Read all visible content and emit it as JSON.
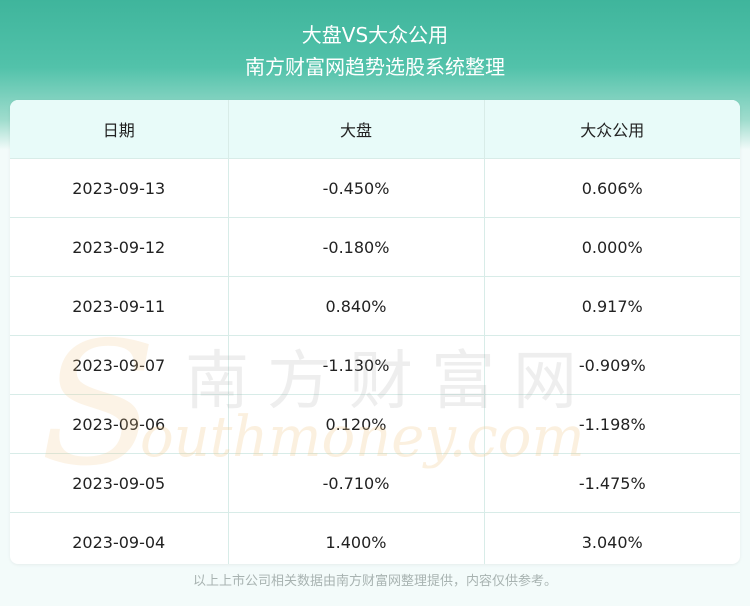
{
  "header": {
    "title": "大盘VS大众公用",
    "subtitle": "南方财富网趋势选股系统整理"
  },
  "table": {
    "columns": [
      "日期",
      "大盘",
      "大众公用"
    ],
    "rows": [
      [
        "2023-09-13",
        "-0.450%",
        "0.606%"
      ],
      [
        "2023-09-12",
        "-0.180%",
        "0.000%"
      ],
      [
        "2023-09-11",
        "0.840%",
        "0.917%"
      ],
      [
        "2023-09-07",
        "-1.130%",
        "-0.909%"
      ],
      [
        "2023-09-06",
        "0.120%",
        "-1.198%"
      ],
      [
        "2023-09-05",
        "-0.710%",
        "-1.475%"
      ],
      [
        "2023-09-04",
        "1.400%",
        "3.040%"
      ]
    ]
  },
  "watermark": {
    "cn": "南方财富网",
    "en": "outhmoney.com",
    "s": "S"
  },
  "footer": {
    "note": "以上上市公司相关数据由南方财富网整理提供，内容仅供参考。"
  },
  "colors": {
    "header_green": "#3fb59c",
    "table_head_bg": "#e8fbf9",
    "border": "#d8ece8"
  }
}
